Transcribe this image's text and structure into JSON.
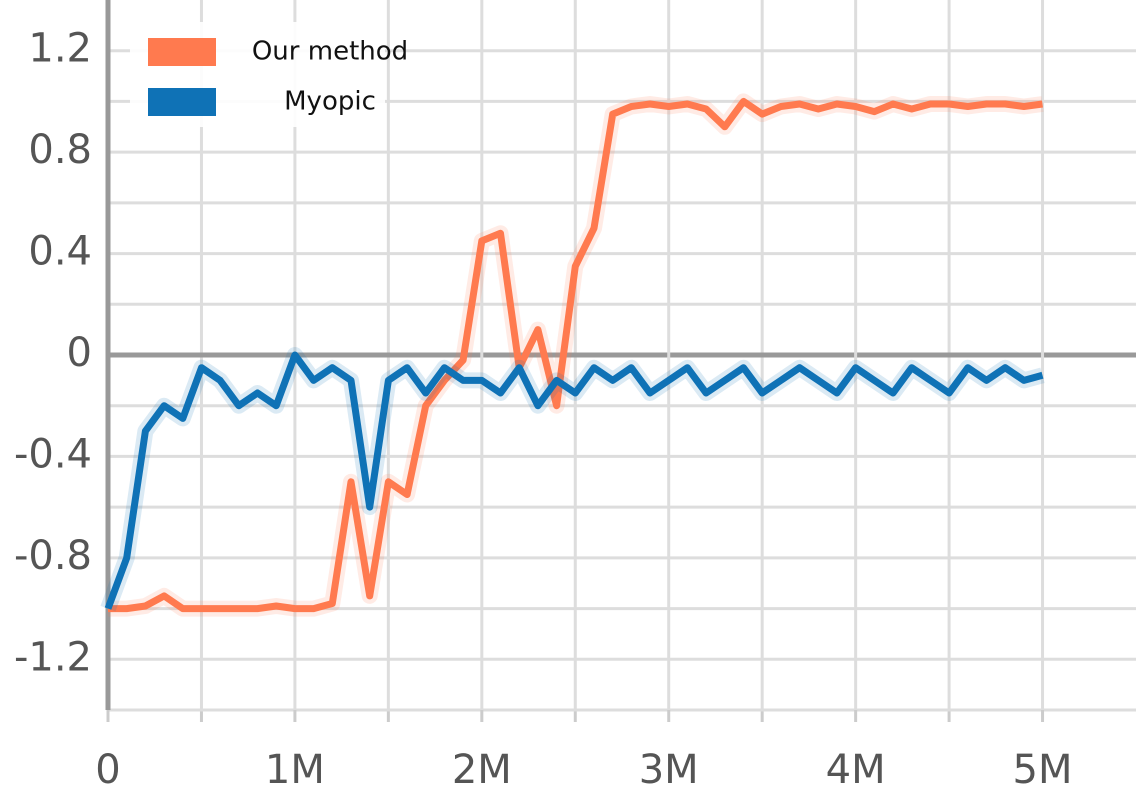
{
  "chart_data": {
    "type": "line",
    "x": [
      0,
      100000,
      200000,
      300000,
      400000,
      500000,
      600000,
      700000,
      800000,
      900000,
      1000000,
      1100000,
      1200000,
      1300000,
      1400000,
      1500000,
      1600000,
      1700000,
      1800000,
      1900000,
      2000000,
      2100000,
      2200000,
      2300000,
      2400000,
      2500000,
      2600000,
      2700000,
      2800000,
      2900000,
      3000000,
      3100000,
      3200000,
      3300000,
      3400000,
      3500000,
      3600000,
      3700000,
      3800000,
      3900000,
      4000000,
      4100000,
      4200000,
      4300000,
      4400000,
      4500000,
      4600000,
      4700000,
      4800000,
      4900000,
      5000000
    ],
    "series": [
      {
        "name": "Our method",
        "color": "#ff7a4f",
        "values": [
          -1.0,
          -1.0,
          -0.99,
          -0.95,
          -1.0,
          -1.0,
          -1.0,
          -1.0,
          -1.0,
          -0.99,
          -1.0,
          -1.0,
          -0.98,
          -0.5,
          -0.95,
          -0.5,
          -0.55,
          -0.2,
          -0.1,
          -0.02,
          0.45,
          0.48,
          -0.05,
          0.1,
          -0.2,
          0.35,
          0.5,
          0.95,
          0.98,
          0.99,
          0.98,
          0.99,
          0.97,
          0.9,
          1.0,
          0.95,
          0.98,
          0.99,
          0.97,
          0.99,
          0.98,
          0.96,
          0.99,
          0.97,
          0.99,
          0.99,
          0.98,
          0.99,
          0.99,
          0.98,
          0.99
        ]
      },
      {
        "name": "Myopic",
        "color": "#0f72b6",
        "values": [
          -1.0,
          -0.8,
          -0.3,
          -0.2,
          -0.25,
          -0.05,
          -0.1,
          -0.2,
          -0.15,
          -0.2,
          0.0,
          -0.1,
          -0.05,
          -0.1,
          -0.6,
          -0.1,
          -0.05,
          -0.15,
          -0.05,
          -0.1,
          -0.1,
          -0.15,
          -0.05,
          -0.2,
          -0.1,
          -0.15,
          -0.05,
          -0.1,
          -0.05,
          -0.15,
          -0.1,
          -0.05,
          -0.15,
          -0.1,
          -0.05,
          -0.15,
          -0.1,
          -0.05,
          -0.1,
          -0.15,
          -0.05,
          -0.1,
          -0.15,
          -0.05,
          -0.1,
          -0.15,
          -0.05,
          -0.1,
          -0.05,
          -0.1,
          -0.08
        ]
      }
    ],
    "xlim": [
      0,
      5500000
    ],
    "xticks": [
      0,
      {
        "value": 1000000,
        "label": "1M"
      },
      {
        "value": 2000000,
        "label": "2M"
      },
      {
        "value": 3000000,
        "label": "3M"
      },
      {
        "value": 4000000,
        "label": "4M"
      },
      {
        "value": 5000000,
        "label": "5M"
      }
    ],
    "ylim": [
      -1.4,
      1.4
    ],
    "yticks": [
      -1.2,
      -0.8,
      -0.4,
      0,
      0.4,
      0.8,
      1.2
    ],
    "grid": true,
    "minor_grid": true,
    "legend": "upper left"
  }
}
